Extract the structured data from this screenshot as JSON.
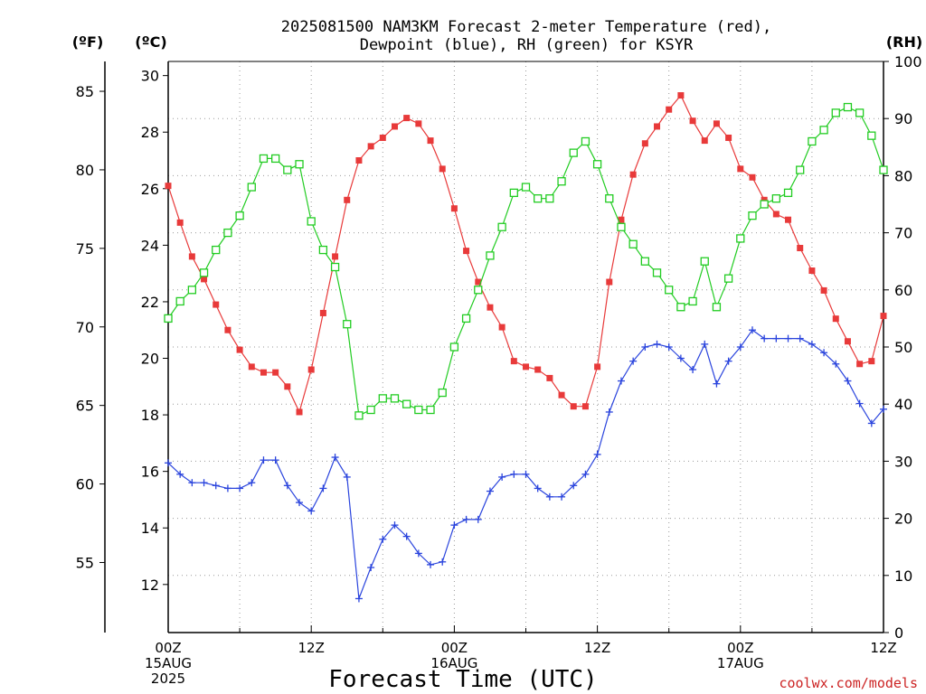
{
  "title_line1": "2025081500 NAM3KM Forecast 2-meter Temperature (red),",
  "title_line2": "Dewpoint (blue), RH (green) for KSYR",
  "units": {
    "f": "(ºF)",
    "c": "(ºC)",
    "rh": "(RH)"
  },
  "xlabel": "Forecast Time (UTC)",
  "credit": "coolwx.com/models",
  "colors": {
    "temperature": "#e83a3a",
    "dewpoint": "#2a44dd",
    "rh": "#22cc22",
    "grid": "#999999"
  },
  "chart_data": {
    "type": "line",
    "x_ticks": [
      {
        "hour": 0,
        "lines": [
          "00Z",
          "15AUG",
          "2025"
        ]
      },
      {
        "hour": 12,
        "lines": [
          "12Z"
        ]
      },
      {
        "hour": 24,
        "lines": [
          "00Z",
          "16AUG"
        ]
      },
      {
        "hour": 36,
        "lines": [
          "12Z"
        ]
      },
      {
        "hour": 48,
        "lines": [
          "00Z",
          "17AUG"
        ]
      },
      {
        "hour": 60,
        "lines": [
          "12Z"
        ]
      }
    ],
    "xlim": [
      0,
      60
    ],
    "left_c_axis": {
      "ylim": [
        10.3,
        30.5
      ],
      "ticks": [
        12,
        14,
        16,
        18,
        20,
        22,
        24,
        26,
        28,
        30
      ]
    },
    "left_f_axis": {
      "ticks": [
        55,
        60,
        65,
        70,
        75,
        80,
        85
      ]
    },
    "right_rh_axis": {
      "ylim": [
        0,
        100
      ],
      "ticks": [
        0,
        10,
        20,
        30,
        40,
        50,
        60,
        70,
        80,
        90,
        100
      ]
    },
    "x_hours": [
      0,
      1,
      2,
      3,
      4,
      5,
      6,
      7,
      8,
      9,
      10,
      11,
      12,
      13,
      14,
      15,
      16,
      17,
      18,
      19,
      20,
      21,
      22,
      23,
      24,
      25,
      26,
      27,
      28,
      29,
      30,
      31,
      32,
      33,
      34,
      35,
      36,
      37,
      38,
      39,
      40,
      41,
      42,
      43,
      44,
      45,
      46,
      47,
      48,
      49,
      50,
      51,
      52,
      53,
      54,
      55,
      56,
      57,
      58,
      59,
      60
    ],
    "series": [
      {
        "name": "Temperature",
        "axis": "c",
        "marker": "filled-square",
        "values": [
          26.1,
          24.8,
          23.6,
          22.8,
          21.9,
          21.0,
          20.3,
          19.7,
          19.5,
          19.5,
          19.0,
          18.1,
          19.6,
          21.6,
          23.6,
          25.6,
          27.0,
          27.5,
          27.8,
          28.2,
          28.5,
          28.3,
          27.7,
          26.7,
          25.3,
          23.8,
          22.7,
          21.8,
          21.1,
          19.9,
          19.7,
          19.6,
          19.3,
          18.7,
          18.3,
          18.3,
          19.7,
          22.7,
          24.9,
          26.5,
          27.6,
          28.2,
          28.8,
          29.3,
          28.4,
          27.7,
          28.3,
          27.8,
          26.7,
          26.4,
          25.6,
          25.1,
          24.9,
          23.9,
          23.1,
          22.4,
          21.4,
          20.6,
          19.8,
          19.9,
          21.5
        ]
      },
      {
        "name": "Dewpoint",
        "axis": "c",
        "marker": "plus",
        "values": [
          16.3,
          15.9,
          15.6,
          15.6,
          15.5,
          15.4,
          15.4,
          15.6,
          16.4,
          16.4,
          15.5,
          14.9,
          14.6,
          15.4,
          16.5,
          15.8,
          11.5,
          12.6,
          13.6,
          14.1,
          13.7,
          13.1,
          12.7,
          12.8,
          14.1,
          14.3,
          14.3,
          15.3,
          15.8,
          15.9,
          15.9,
          15.4,
          15.1,
          15.1,
          15.5,
          15.9,
          16.6,
          18.1,
          19.2,
          19.9,
          20.4,
          20.5,
          20.4,
          20.0,
          19.6,
          20.5,
          19.1,
          19.9,
          20.4,
          21.0,
          20.7,
          20.7,
          20.7,
          20.7,
          20.5,
          20.2,
          19.8,
          19.2,
          18.4,
          17.7,
          18.2
        ]
      },
      {
        "name": "RH",
        "axis": "rh",
        "marker": "open-square",
        "values": [
          55,
          58,
          60,
          63,
          67,
          70,
          73,
          78,
          83,
          83,
          81,
          82,
          72,
          67,
          64,
          54,
          38,
          39,
          41,
          41,
          40,
          39,
          39,
          42,
          50,
          55,
          60,
          66,
          71,
          77,
          78,
          76,
          76,
          79,
          84,
          86,
          82,
          76,
          71,
          68,
          65,
          63,
          60,
          57,
          58,
          65,
          57,
          62,
          69,
          73,
          75,
          76,
          77,
          81,
          86,
          88,
          91,
          92,
          91,
          87,
          81
        ]
      }
    ]
  }
}
